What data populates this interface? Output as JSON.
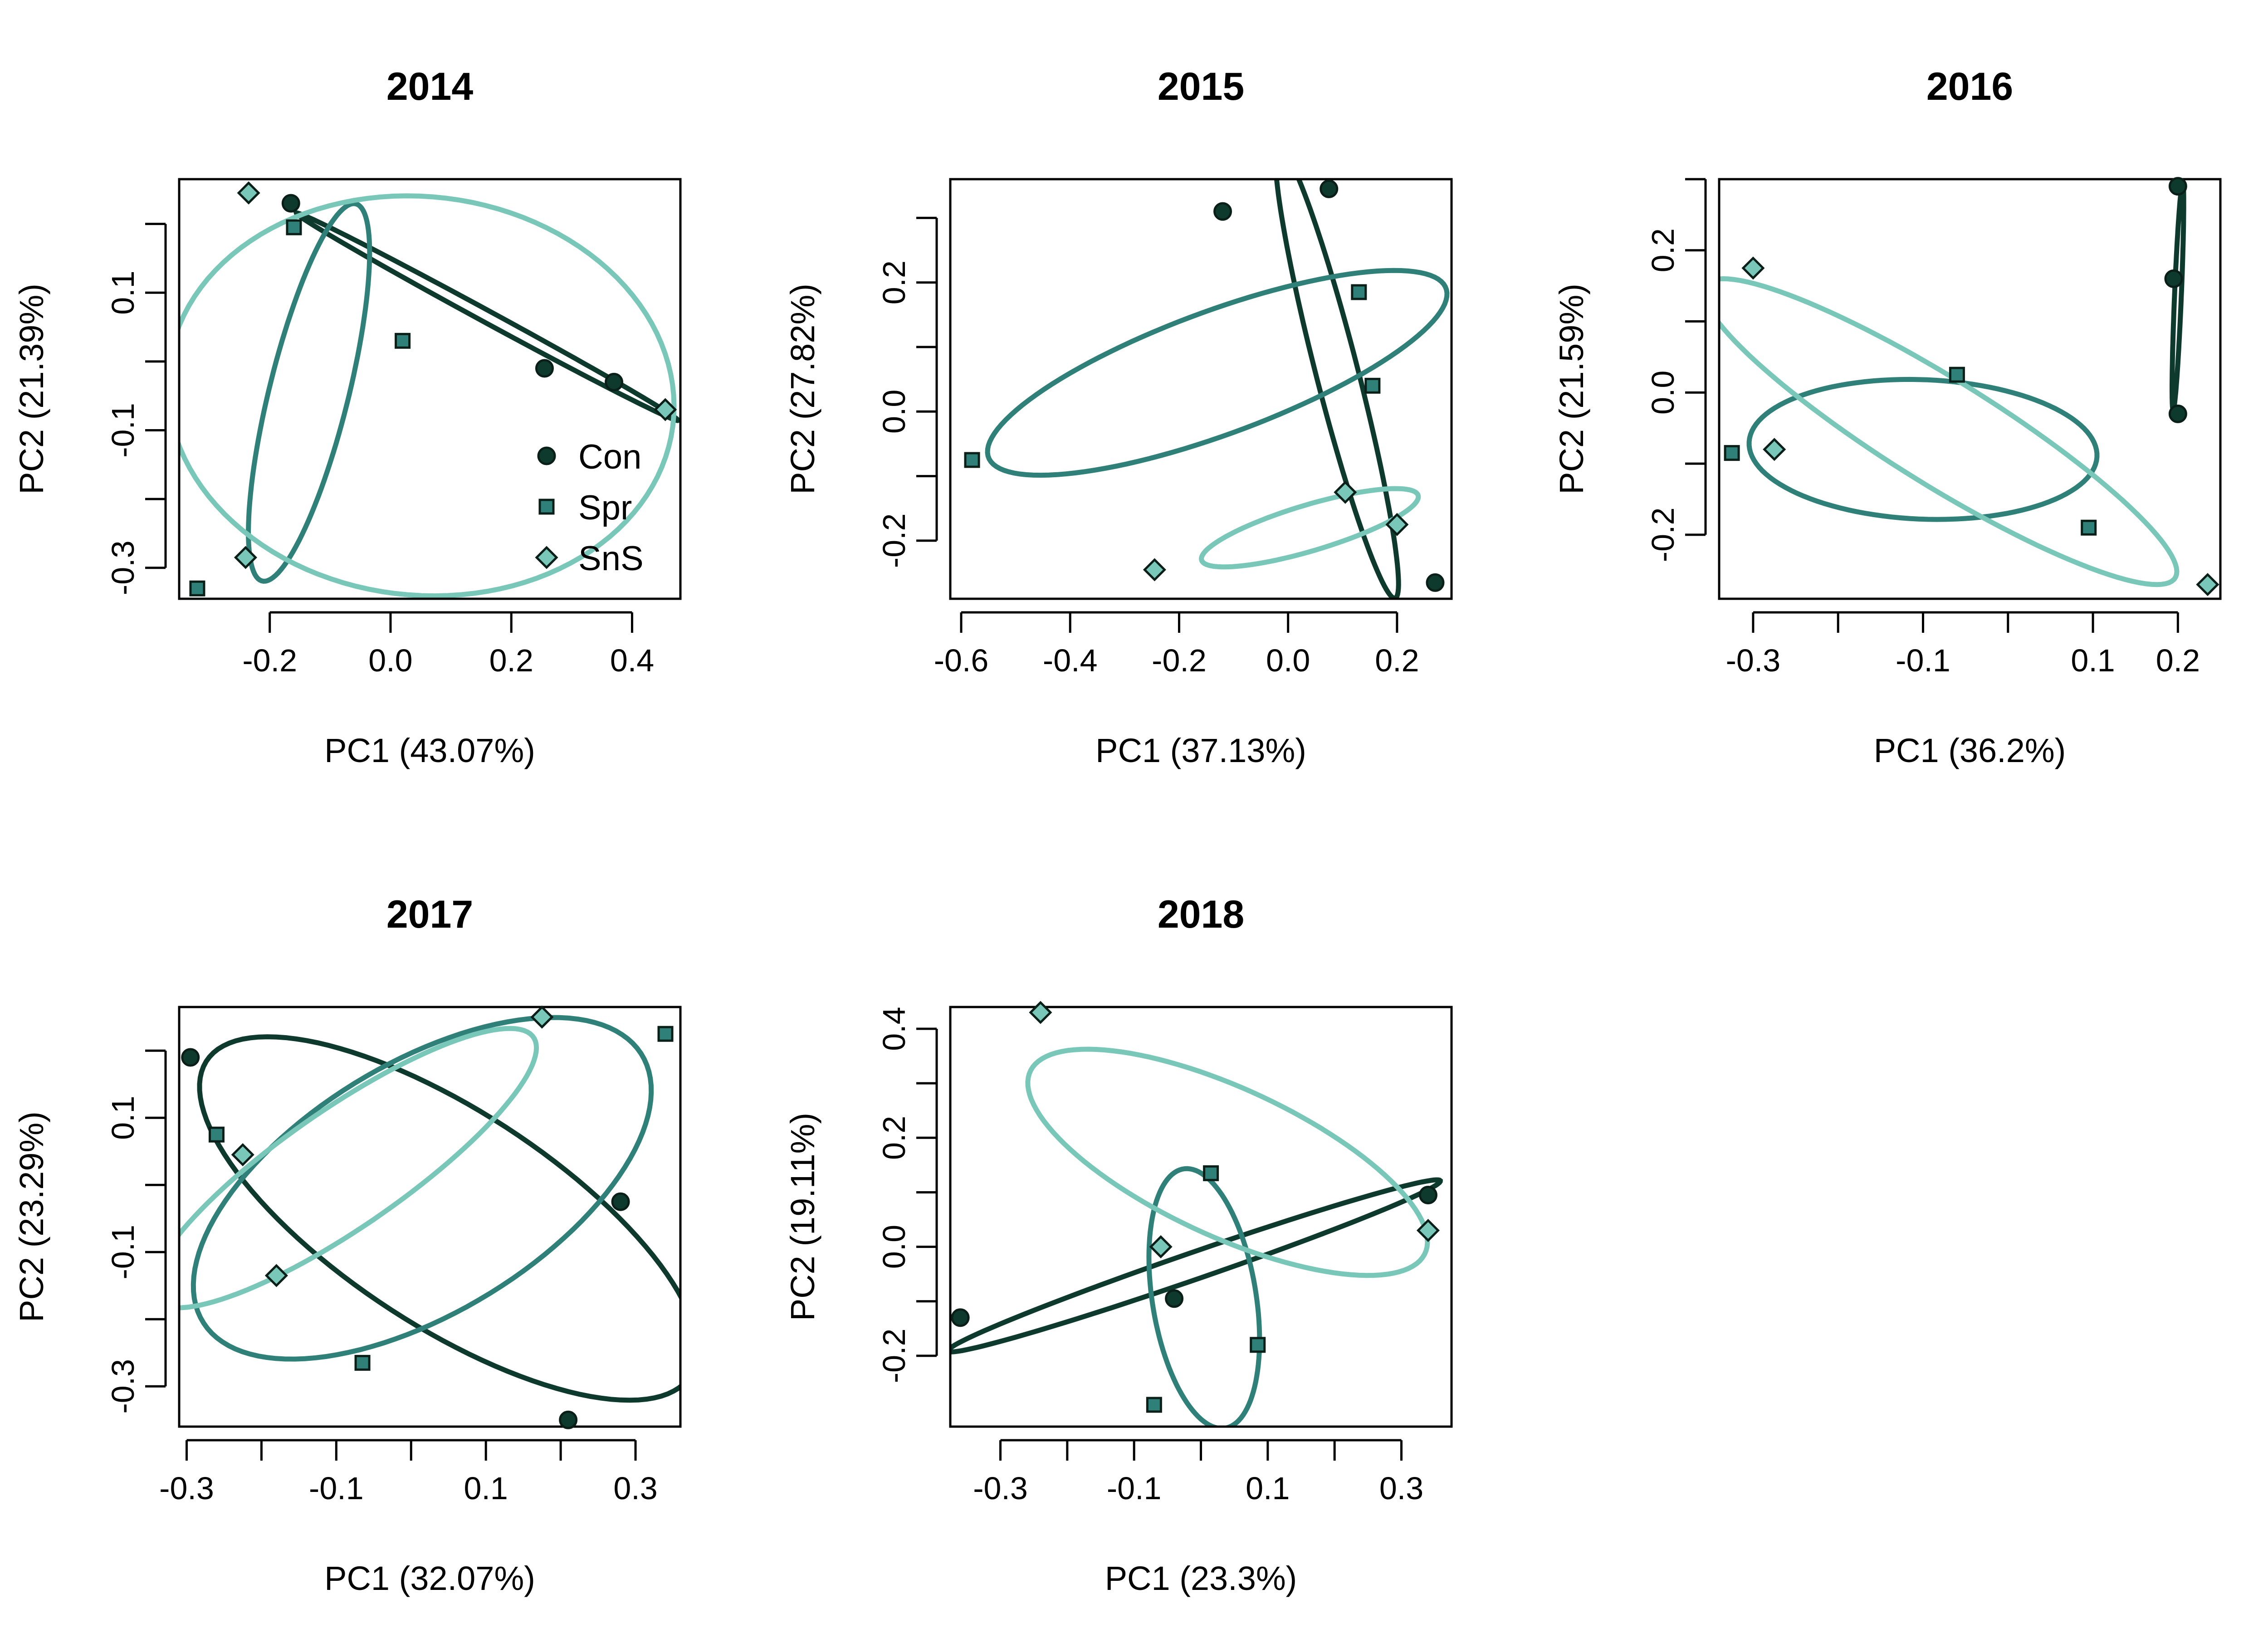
{
  "colors": {
    "Con": "#0e3a2e",
    "Spr": "#2f8078",
    "SnS": "#78c7b8"
  },
  "legend": [
    {
      "name": "Con",
      "marker": "circle"
    },
    {
      "name": "Spr",
      "marker": "square"
    },
    {
      "name": "SnS",
      "marker": "diamond"
    }
  ],
  "chart_data": [
    {
      "type": "scatter",
      "title": "2014",
      "xlabel": "PC1 (43.07%)",
      "ylabel": "PC2 (21.39%)",
      "xlim": [
        -0.35,
        0.48
      ],
      "ylim": [
        -0.345,
        0.265
      ],
      "xticks": [
        -0.2,
        0.0,
        0.2,
        0.4
      ],
      "xtick_labels": [
        "-0.2",
        "0.0",
        "0.2",
        "0.4"
      ],
      "yticks": [
        -0.3,
        -0.2,
        -0.1,
        0.0,
        0.1,
        0.2
      ],
      "ytick_labels": [
        "-0.3",
        "",
        "-0.1",
        "",
        "0.1",
        ""
      ],
      "has_legend": true,
      "legend_position": "bottom-right",
      "series": [
        {
          "name": "Con",
          "points": [
            [
              -0.165,
              0.23
            ],
            [
              0.255,
              -0.01
            ],
            [
              0.37,
              -0.03
            ]
          ],
          "ellipse": {
            "cx": 0.16,
            "cy": 0.065,
            "rx": 0.35,
            "ry": 0.009,
            "angle_deg": -25.5
          }
        },
        {
          "name": "Spr",
          "points": [
            [
              -0.32,
              -0.33
            ],
            [
              -0.16,
              0.195
            ],
            [
              0.02,
              0.03
            ]
          ],
          "ellipse": {
            "cx": -0.135,
            "cy": -0.045,
            "rx": 0.285,
            "ry": 0.065,
            "angle_deg": 74
          }
        },
        {
          "name": "SnS",
          "points": [
            [
              -0.235,
              0.245
            ],
            [
              -0.24,
              -0.285
            ],
            [
              0.455,
              -0.07
            ]
          ],
          "ellipse": {
            "cx": 0.05,
            "cy": -0.05,
            "rx": 0.42,
            "ry": 0.29,
            "angle_deg": -4
          }
        }
      ]
    },
    {
      "type": "scatter",
      "title": "2015",
      "xlabel": "PC1 (37.13%)",
      "ylabel": "PC2 (27.82%)",
      "xlim": [
        -0.62,
        0.3
      ],
      "ylim": [
        -0.29,
        0.36
      ],
      "xticks": [
        -0.6,
        -0.4,
        -0.2,
        0.0,
        0.2
      ],
      "xtick_labels": [
        "-0.6",
        "-0.4",
        "-0.2",
        "0.0",
        "0.2"
      ],
      "yticks": [
        -0.2,
        -0.1,
        0.0,
        0.1,
        0.2,
        0.3
      ],
      "ytick_labels": [
        "-0.2",
        "",
        "0.0",
        "",
        "0.2",
        ""
      ],
      "has_legend": false,
      "series": [
        {
          "name": "Con",
          "points": [
            [
              -0.12,
              0.31
            ],
            [
              0.075,
              0.345
            ],
            [
              0.27,
              -0.265
            ]
          ],
          "ellipse": {
            "cx": 0.09,
            "cy": 0.06,
            "rx": 0.365,
            "ry": 0.038,
            "angle_deg": -73
          }
        },
        {
          "name": "Spr",
          "points": [
            [
              -0.58,
              -0.075
            ],
            [
              0.13,
              0.185
            ],
            [
              0.155,
              0.04
            ]
          ],
          "ellipse": {
            "cx": -0.13,
            "cy": 0.06,
            "rx": 0.44,
            "ry": 0.097,
            "angle_deg": 17
          }
        },
        {
          "name": "SnS",
          "points": [
            [
              -0.245,
              -0.245
            ],
            [
              0.105,
              -0.125
            ],
            [
              0.2,
              -0.175
            ]
          ],
          "ellipse": {
            "cx": 0.04,
            "cy": -0.18,
            "rx": 0.205,
            "ry": 0.036,
            "angle_deg": 14
          }
        }
      ]
    },
    {
      "type": "scatter",
      "title": "2016",
      "xlabel": "PC1 (36.2%)",
      "ylabel": "PC2 (21.59%)",
      "xlim": [
        -0.34,
        0.25
      ],
      "ylim": [
        -0.29,
        0.3
      ],
      "xticks": [
        -0.3,
        -0.2,
        -0.1,
        0.0,
        0.1,
        0.2
      ],
      "xtick_labels": [
        "-0.3",
        "",
        "-0.1",
        "",
        "0.1",
        "0.2"
      ],
      "yticks": [
        -0.2,
        -0.1,
        0.0,
        0.1,
        0.2,
        0.3
      ],
      "ytick_labels": [
        "-0.2",
        "",
        "0.0",
        "",
        "0.2",
        ""
      ],
      "has_legend": false,
      "series": [
        {
          "name": "Con",
          "points": [
            [
              0.2,
              0.29
            ],
            [
              0.195,
              0.16
            ],
            [
              0.2,
              -0.03
            ]
          ],
          "ellipse": {
            "cx": 0.2,
            "cy": 0.135,
            "rx": 0.16,
            "ry": 0.004,
            "angle_deg": 88
          }
        },
        {
          "name": "Spr",
          "points": [
            [
              -0.325,
              -0.085
            ],
            [
              -0.06,
              0.025
            ],
            [
              0.095,
              -0.19
            ]
          ],
          "ellipse": {
            "cx": -0.1,
            "cy": -0.08,
            "rx": 0.205,
            "ry": 0.098,
            "angle_deg": -3
          }
        },
        {
          "name": "SnS",
          "points": [
            [
              -0.3,
              0.175
            ],
            [
              -0.275,
              -0.08
            ],
            [
              0.235,
              -0.27
            ]
          ],
          "ellipse": {
            "cx": -0.08,
            "cy": -0.055,
            "rx": 0.345,
            "ry": 0.07,
            "angle_deg": -37
          }
        }
      ]
    },
    {
      "type": "scatter",
      "title": "2017",
      "xlabel": "PC1 (32.07%)",
      "ylabel": "PC2 (23.29%)",
      "xlim": [
        -0.31,
        0.36
      ],
      "ylim": [
        -0.36,
        0.265
      ],
      "xticks": [
        -0.3,
        -0.2,
        -0.1,
        0.0,
        0.1,
        0.2,
        0.3
      ],
      "xtick_labels": [
        "-0.3",
        "",
        "-0.1",
        "",
        "0.1",
        "",
        "0.3"
      ],
      "yticks": [
        -0.3,
        -0.2,
        -0.1,
        0.0,
        0.1,
        0.2
      ],
      "ytick_labels": [
        "-0.3",
        "",
        "-0.1",
        "",
        "0.1",
        ""
      ],
      "has_legend": false,
      "series": [
        {
          "name": "Con",
          "points": [
            [
              -0.295,
              0.19
            ],
            [
              0.28,
              -0.025
            ],
            [
              0.21,
              -0.35
            ]
          ],
          "ellipse": {
            "cx": 0.05,
            "cy": -0.05,
            "rx": 0.4,
            "ry": 0.155,
            "angle_deg": -37
          }
        },
        {
          "name": "Spr",
          "points": [
            [
              -0.26,
              0.075
            ],
            [
              -0.065,
              -0.265
            ],
            [
              0.34,
              0.225
            ]
          ],
          "ellipse": {
            "cx": 0.015,
            "cy": -0.005,
            "rx": 0.355,
            "ry": 0.18,
            "angle_deg": 36
          }
        },
        {
          "name": "SnS",
          "points": [
            [
              -0.225,
              0.045
            ],
            [
              -0.18,
              -0.135
            ],
            [
              0.175,
              0.25
            ]
          ],
          "ellipse": {
            "cx": -0.09,
            "cy": 0.025,
            "rx": 0.32,
            "ry": 0.085,
            "angle_deg": 38
          }
        }
      ]
    },
    {
      "type": "scatter",
      "title": "2018",
      "xlabel": "PC1 (23.3%)",
      "ylabel": "PC2 (19.11%)",
      "xlim": [
        -0.375,
        0.375
      ],
      "ylim": [
        -0.33,
        0.44
      ],
      "xticks": [
        -0.3,
        -0.2,
        -0.1,
        0.0,
        0.1,
        0.2,
        0.3
      ],
      "xtick_labels": [
        "-0.3",
        "",
        "-0.1",
        "",
        "0.1",
        "",
        "0.3"
      ],
      "yticks": [
        -0.2,
        -0.1,
        0.0,
        0.1,
        0.2,
        0.3,
        0.4
      ],
      "ytick_labels": [
        "-0.2",
        "",
        "0.0",
        "",
        "0.2",
        "",
        "0.4"
      ],
      "has_legend": false,
      "series": [
        {
          "name": "Con",
          "points": [
            [
              -0.36,
              -0.13
            ],
            [
              -0.04,
              -0.095
            ],
            [
              0.34,
              0.095
            ]
          ],
          "ellipse": {
            "cx": -0.01,
            "cy": -0.035,
            "rx": 0.4,
            "ry": 0.024,
            "angle_deg": 23
          }
        },
        {
          "name": "Spr",
          "points": [
            [
              -0.07,
              -0.29
            ],
            [
              0.015,
              0.135
            ],
            [
              0.085,
              -0.18
            ]
          ],
          "ellipse": {
            "cx": 0.005,
            "cy": -0.095,
            "rx": 0.24,
            "ry": 0.078,
            "angle_deg": 97
          }
        },
        {
          "name": "SnS",
          "points": [
            [
              -0.24,
              0.43
            ],
            [
              -0.06,
              0.0
            ],
            [
              0.34,
              0.03
            ]
          ],
          "ellipse": {
            "cx": 0.04,
            "cy": 0.155,
            "rx": 0.34,
            "ry": 0.13,
            "angle_deg": -31
          }
        }
      ]
    }
  ]
}
